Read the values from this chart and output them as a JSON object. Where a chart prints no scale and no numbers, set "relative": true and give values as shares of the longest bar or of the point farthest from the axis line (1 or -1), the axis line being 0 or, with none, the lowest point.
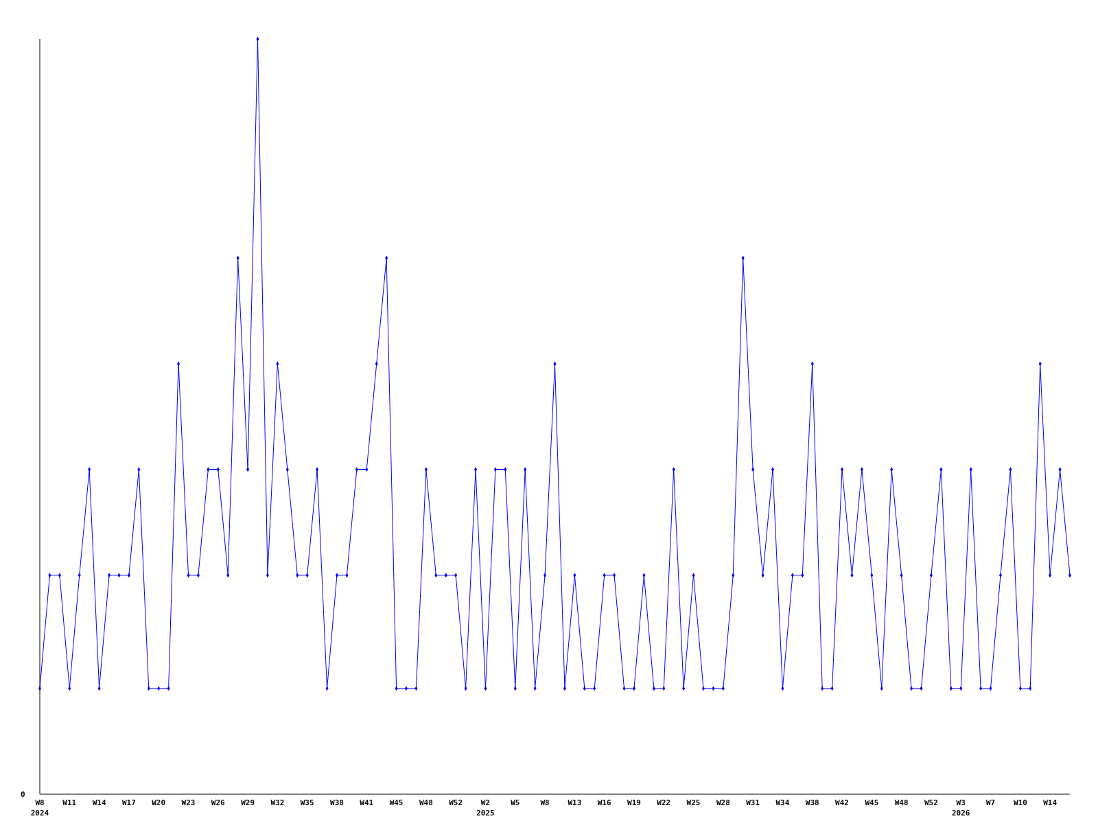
{
  "chart_data": {
    "type": "line",
    "relative": true,
    "color": "#0000ff",
    "marker": "diamond",
    "categories": [
      "W8\n2024",
      null,
      null,
      "W11",
      null,
      null,
      "W14",
      null,
      null,
      "W17",
      null,
      null,
      "W20",
      null,
      null,
      "W23",
      null,
      null,
      "W26",
      null,
      null,
      "W29",
      null,
      null,
      "W32",
      null,
      null,
      "W35",
      null,
      null,
      "W38",
      null,
      null,
      "W41",
      null,
      null,
      "W45",
      null,
      null,
      "W48",
      null,
      null,
      "W52",
      null,
      null,
      "W2\n2025",
      null,
      null,
      "W5",
      null,
      null,
      "W8",
      null,
      null,
      "W13",
      null,
      null,
      "W16",
      null,
      null,
      "W19",
      null,
      null,
      "W22",
      null,
      null,
      "W25",
      null,
      null,
      "W28",
      null,
      null,
      "W31",
      null,
      null,
      "W34",
      null,
      null,
      "W38",
      null,
      null,
      "W42",
      null,
      null,
      "W45",
      null,
      null,
      "W48",
      null,
      null,
      "W52",
      null,
      null,
      "W3\n2026",
      null,
      null,
      "W7",
      null,
      null,
      "W10",
      null,
      null,
      "W14",
      null,
      null
    ],
    "values": [
      0.14,
      0.29,
      0.29,
      0.14,
      0.29,
      0.43,
      0.14,
      0.29,
      0.29,
      0.29,
      0.43,
      0.14,
      0.14,
      0.14,
      0.57,
      0.29,
      0.29,
      0.43,
      0.43,
      0.29,
      0.71,
      0.43,
      1,
      0.29,
      0.57,
      0.43,
      0.29,
      0.29,
      0.43,
      0.14,
      0.29,
      0.29,
      0.43,
      0.43,
      0.57,
      0.71,
      0.14,
      0.14,
      0.14,
      0.43,
      0.29,
      0.29,
      0.29,
      0.14,
      0.43,
      0.14,
      0.43,
      0.43,
      0.14,
      0.43,
      0.14,
      0.29,
      0.57,
      0.14,
      0.29,
      0.14,
      0.14,
      0.29,
      0.29,
      0.14,
      0.14,
      0.29,
      0.14,
      0.14,
      0.43,
      0.14,
      0.29,
      0.14,
      0.14,
      0.14,
      0.29,
      0.71,
      0.43,
      0.29,
      0.43,
      0.14,
      0.29,
      0.29,
      0.57,
      0.14,
      0.14,
      0.43,
      0.29,
      0.43,
      0.29,
      0.14,
      0.43,
      0.29,
      0.14,
      0.14,
      0.29,
      0.43,
      0.14,
      0.14,
      0.43,
      0.14,
      0.14,
      0.29,
      0.43,
      0.14,
      0.14,
      0.57,
      0.29,
      0.43,
      0.29
    ],
    "annotations": [
      "0"
    ]
  }
}
